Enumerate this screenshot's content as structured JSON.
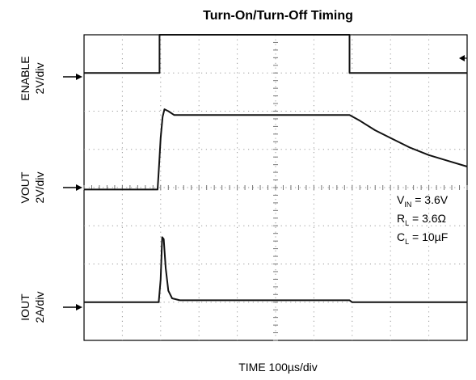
{
  "chart_data": {
    "type": "line",
    "title": "Turn-On/Turn-Off Timing",
    "xlabel": "TIME 100µs/div",
    "x_divisions": 10,
    "y_divisions": 8,
    "grid": true,
    "channels": [
      {
        "label": "ENABLE",
        "scale": "2V/div"
      },
      {
        "label": "VOUT",
        "scale": "2V/div"
      },
      {
        "label": "IOUT",
        "scale": "2A/div"
      }
    ],
    "x_unit": "div",
    "y_unit": "div",
    "series": [
      {
        "name": "ENABLE",
        "points": [
          [
            0,
            7.0
          ],
          [
            1.97,
            7.0
          ],
          [
            1.97,
            8.0
          ],
          [
            6.93,
            8.0
          ],
          [
            6.93,
            7.0
          ],
          [
            10,
            7.0
          ]
        ]
      },
      {
        "name": "VOUT",
        "points": [
          [
            0,
            3.95
          ],
          [
            1.92,
            3.95
          ],
          [
            1.96,
            4.6
          ],
          [
            2.0,
            5.3
          ],
          [
            2.05,
            5.85
          ],
          [
            2.1,
            6.05
          ],
          [
            2.2,
            6.0
          ],
          [
            2.35,
            5.9
          ],
          [
            6.93,
            5.9
          ],
          [
            7.2,
            5.75
          ],
          [
            7.6,
            5.5
          ],
          [
            8.0,
            5.3
          ],
          [
            8.5,
            5.05
          ],
          [
            9.0,
            4.85
          ],
          [
            9.5,
            4.7
          ],
          [
            10,
            4.55
          ]
        ]
      },
      {
        "name": "IOUT",
        "points": [
          [
            0,
            1.0
          ],
          [
            1.95,
            1.0
          ],
          [
            2.0,
            1.6
          ],
          [
            2.04,
            2.7
          ],
          [
            2.08,
            2.65
          ],
          [
            2.13,
            1.9
          ],
          [
            2.2,
            1.3
          ],
          [
            2.3,
            1.1
          ],
          [
            2.5,
            1.05
          ],
          [
            6.93,
            1.05
          ],
          [
            7.0,
            1.0
          ],
          [
            10,
            1.0
          ]
        ]
      }
    ],
    "annotations": [
      {
        "name": "V",
        "sub": "IN",
        "value": " = 3.6V"
      },
      {
        "name": "R",
        "sub": "L",
        "value": " = 3.6Ω"
      },
      {
        "name": "C",
        "sub": "L",
        "value": " = 10µF"
      }
    ]
  }
}
